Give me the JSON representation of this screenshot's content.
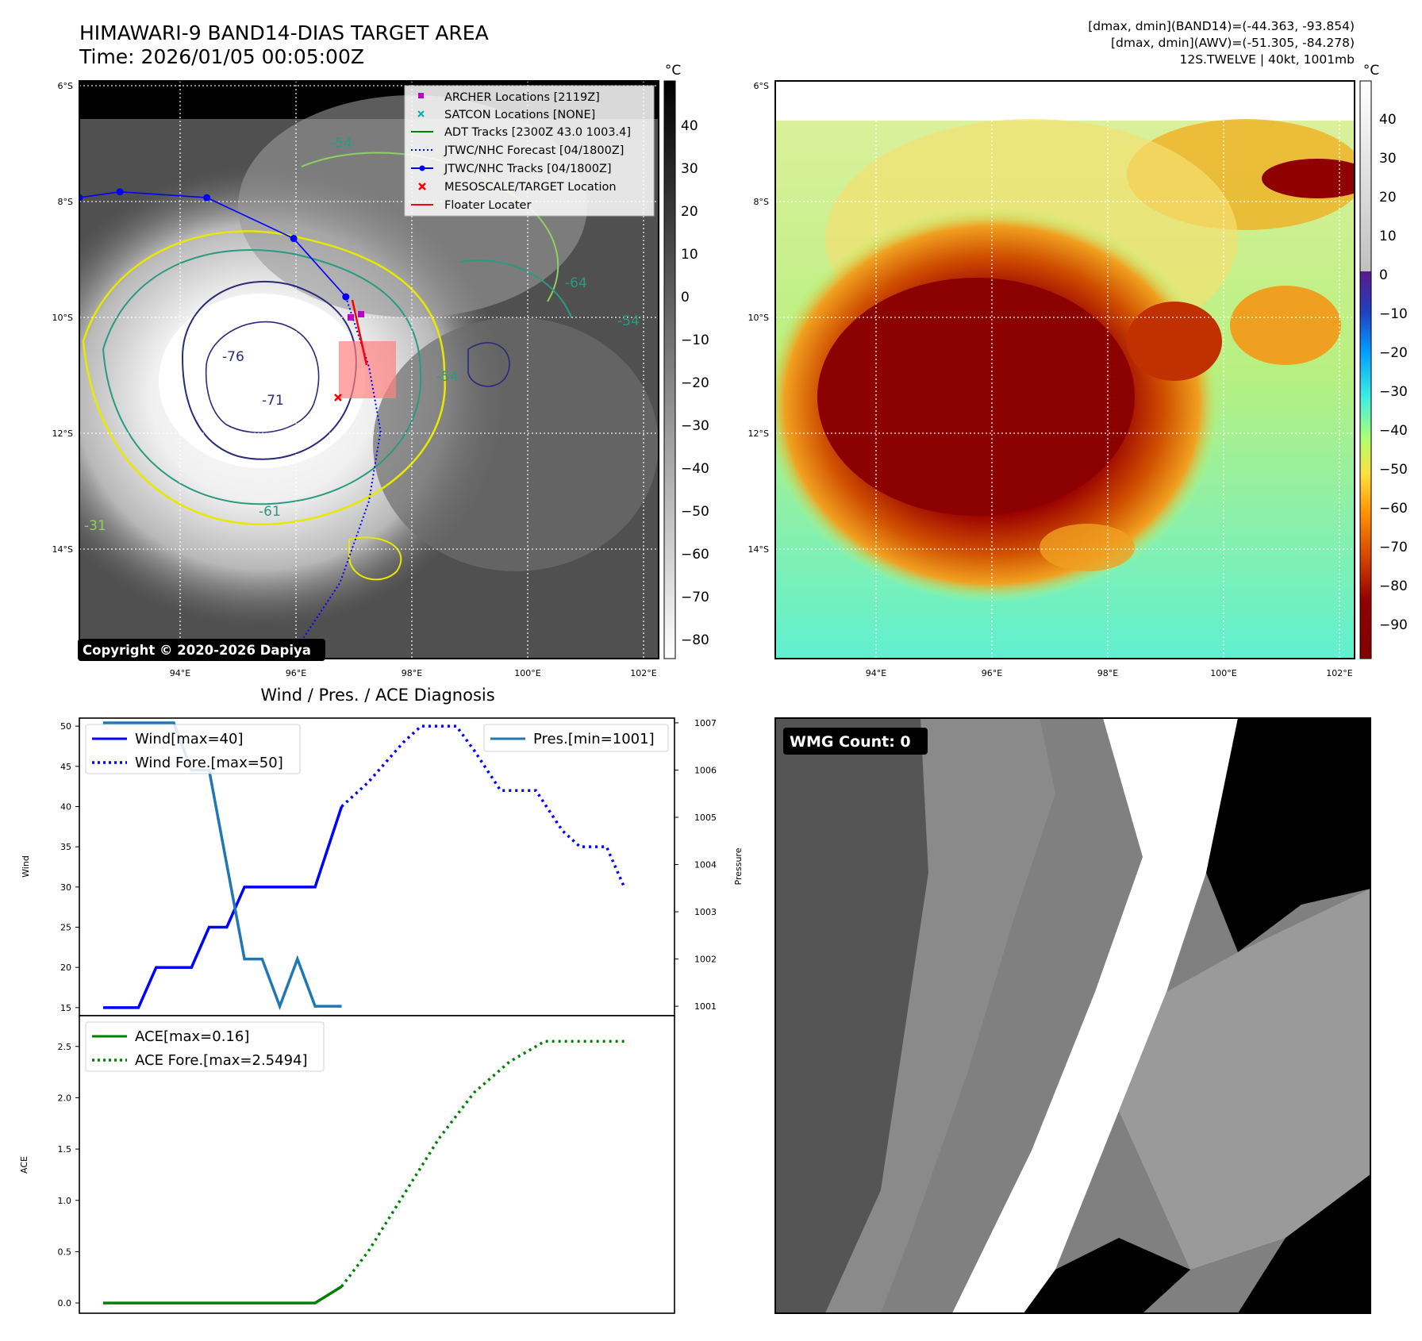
{
  "header": {
    "title_line1": "HIMAWARI-9 BAND14-DIAS TARGET AREA",
    "title_line2": "Time: 2026/01/05 00:05:00Z",
    "meta_line1": "[dmax, dmin](BAND14)=(-44.363, -93.854)",
    "meta_line2": "[dmax, dmin](AWV)=(-51.305, -84.278)",
    "meta_line3": "12S.TWELVE | 40kt, 1001mb"
  },
  "map_axes": {
    "lat_labels": [
      "6°S",
      "8°S",
      "10°S",
      "12°S",
      "14°S"
    ],
    "lon_labels": [
      "94°E",
      "96°E",
      "98°E",
      "100°E",
      "102°E"
    ],
    "lon_range": [
      92.3,
      102.3
    ],
    "lat_range": [
      -15.9,
      -6.0
    ]
  },
  "left_map": {
    "copyright": "Copyright © 2020-2026 Dapiya",
    "cbar_unit": "°C",
    "cbar_ticks": [
      "40",
      "30",
      "20",
      "10",
      "0",
      "−10",
      "−20",
      "−30",
      "−40",
      "−50",
      "−60",
      "−70",
      "−80"
    ],
    "legend": [
      {
        "label": "ARCHER Locations [2119Z]",
        "color": "#c000c0",
        "marker": "square"
      },
      {
        "label": "SATCON Locations [NONE]",
        "color": "#00b0b0",
        "marker": "x"
      },
      {
        "label": "ADT Tracks [2300Z 43.0 1003.4]",
        "color": "#008000",
        "marker": "line"
      },
      {
        "label": "JTWC/NHC Forecast [04/1800Z]",
        "color": "#0000ff",
        "marker": "dotted"
      },
      {
        "label": "JTWC/NHC Tracks [04/1800Z]",
        "color": "#0000ff",
        "marker": "line-dot"
      },
      {
        "label": "MESOSCALE/TARGET Location",
        "color": "#ff0000",
        "marker": "x"
      },
      {
        "label": "Floater Locater",
        "color": "#ff0000",
        "marker": "line"
      }
    ],
    "contour_labels": [
      "-54",
      "-64",
      "-54",
      "-76",
      "-71",
      "-61",
      "-31",
      "-54"
    ],
    "jtwc_track": [
      {
        "lon": 92.3,
        "lat": -8.0
      },
      {
        "lon": 93.0,
        "lat": -7.9
      },
      {
        "lon": 94.5,
        "lat": -8.0
      },
      {
        "lon": 96.0,
        "lat": -8.7
      },
      {
        "lon": 96.9,
        "lat": -9.7
      }
    ],
    "jtwc_forecast": [
      {
        "lon": 96.9,
        "lat": -9.7
      },
      {
        "lon": 97.3,
        "lat": -10.9
      },
      {
        "lon": 97.5,
        "lat": -12.0
      },
      {
        "lon": 97.3,
        "lat": -13.2
      },
      {
        "lon": 96.8,
        "lat": -14.6
      },
      {
        "lon": 96.2,
        "lat": -15.5
      },
      {
        "lon": 95.9,
        "lat": -15.9
      }
    ]
  },
  "right_map": {
    "cbar_unit": "°C",
    "cbar_ticks": [
      "40",
      "30",
      "20",
      "10",
      "0",
      "−10",
      "−20",
      "−30",
      "−40",
      "−50",
      "−60",
      "−70",
      "−80",
      "−90"
    ]
  },
  "wmg_panel": {
    "label": "WMG Count: 0"
  },
  "chart_data": [
    {
      "type": "line",
      "title": "Wind / Pres. / ACE Diagnosis",
      "ylabel": "Wind",
      "ylabel_right": "Pressure",
      "ylim": [
        14,
        51
      ],
      "ylim_right": [
        1000.8,
        1007.1
      ],
      "yticks": [
        "15",
        "20",
        "25",
        "30",
        "35",
        "40",
        "45",
        "50"
      ],
      "yticks_right": [
        "1001",
        "1002",
        "1003",
        "1004",
        "1005",
        "1006",
        "1007"
      ],
      "series": [
        {
          "name": "Wind[max=40]",
          "color": "#0000ff",
          "style": "solid",
          "axis": "left",
          "x": [
            0,
            2,
            3,
            5,
            6,
            7,
            8,
            11,
            12,
            13.5
          ],
          "values": [
            15,
            15,
            20,
            20,
            25,
            25,
            30,
            30,
            30,
            40
          ]
        },
        {
          "name": "Wind Fore.[max=50]",
          "color": "#0000ff",
          "style": "dotted",
          "axis": "left",
          "x": [
            13.5,
            15,
            17,
            18,
            19,
            20,
            21,
            22.5,
            23.5,
            24.5,
            26,
            27,
            28.5,
            29.5
          ],
          "values": [
            40,
            43,
            48,
            50,
            50,
            50,
            47,
            42,
            42,
            42,
            37,
            35,
            35,
            30
          ]
        },
        {
          "name": "Pres.[min=1001]",
          "color": "#1f77b4",
          "style": "solid",
          "axis": "right",
          "x": [
            0,
            4,
            5,
            6,
            7,
            8,
            9,
            10,
            11,
            12,
            13.5
          ],
          "values": [
            1007,
            1007,
            1006,
            1006,
            1004,
            1002,
            1002,
            1001,
            1002,
            1001,
            1001
          ]
        }
      ]
    },
    {
      "type": "line",
      "ylabel": "ACE",
      "ylim": [
        -0.1,
        2.8
      ],
      "yticks": [
        "0.0",
        "0.5",
        "1.0",
        "1.5",
        "2.0",
        "2.5"
      ],
      "series": [
        {
          "name": "ACE[max=0.16]",
          "color": "#008000",
          "style": "solid",
          "x": [
            0,
            11,
            12,
            13.5
          ],
          "values": [
            0,
            0,
            0,
            0.16
          ]
        },
        {
          "name": "ACE Fore.[max=2.5494]",
          "color": "#008000",
          "style": "dotted",
          "x": [
            13.5,
            15,
            17,
            19,
            21,
            23,
            25,
            27,
            29.5
          ],
          "values": [
            0.16,
            0.5,
            1.05,
            1.6,
            2.05,
            2.35,
            2.55,
            2.55,
            2.55
          ]
        }
      ]
    }
  ]
}
